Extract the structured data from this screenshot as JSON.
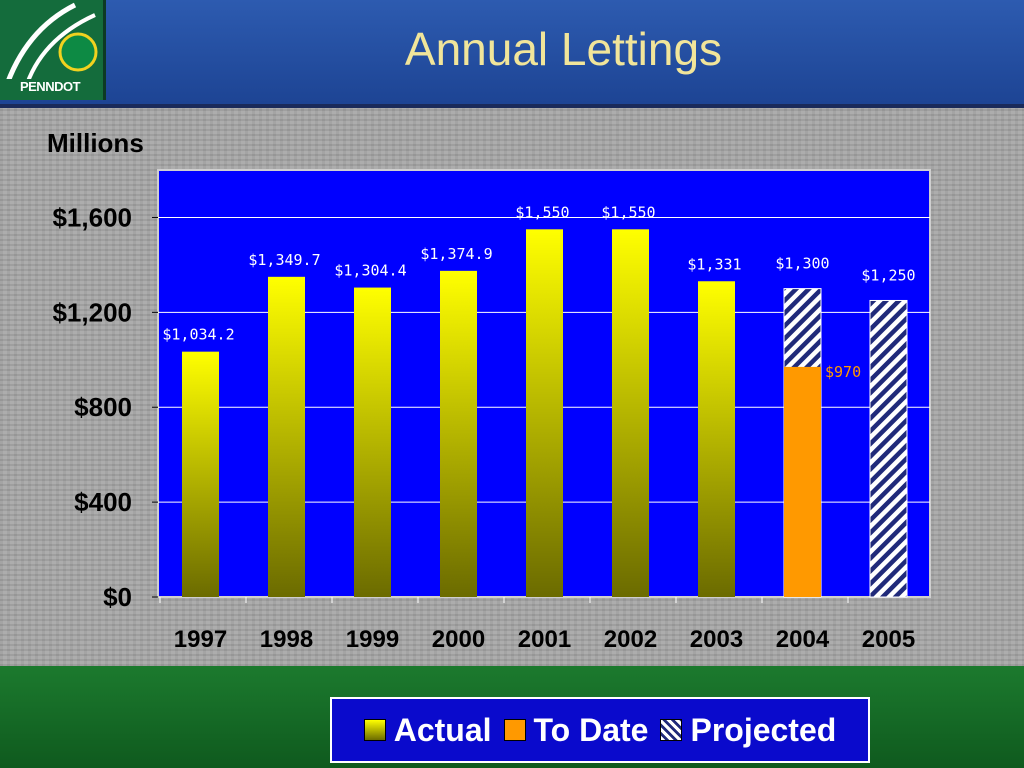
{
  "header": {
    "title": "Annual Lettings",
    "logo_text": "PENNDOT"
  },
  "chart_data": {
    "type": "bar",
    "units_label": "Millions",
    "categories": [
      "1997",
      "1998",
      "1999",
      "2000",
      "2001",
      "2002",
      "2003",
      "2004",
      "2005"
    ],
    "series": [
      {
        "name": "Actual",
        "values": [
          1034.2,
          1349.7,
          1304.4,
          1374.9,
          1550,
          1550,
          1331,
          null,
          null
        ],
        "labels": [
          "$1,034.2",
          "$1,349.7",
          "$1,304.4",
          "$1,374.9",
          "$1,550",
          "$1,550",
          "$1,331",
          null,
          null
        ]
      },
      {
        "name": "To Date",
        "values": [
          null,
          null,
          null,
          null,
          null,
          null,
          null,
          970,
          null
        ],
        "labels": [
          null,
          null,
          null,
          null,
          null,
          null,
          null,
          "$970",
          null
        ]
      },
      {
        "name": "Projected",
        "values": [
          null,
          null,
          null,
          null,
          null,
          null,
          null,
          1300,
          1250
        ],
        "labels": [
          null,
          null,
          null,
          null,
          null,
          null,
          null,
          "$1,300",
          "$1,250"
        ]
      }
    ],
    "y_ticks": [
      "$0",
      "$400",
      "$800",
      "$1,200",
      "$1,600"
    ],
    "y_tick_values": [
      0,
      400,
      800,
      1200,
      1600
    ],
    "ylim": [
      0,
      1800
    ],
    "grid": true,
    "legend_position": "bottom",
    "colors": {
      "plot_bg": "#0000ff",
      "actual_top": "#ffff00",
      "actual_bottom": "#6b6b00",
      "to_date": "#ff9900",
      "projected_stripe": "#202a7a",
      "to_date_label": "#ff9900"
    }
  }
}
